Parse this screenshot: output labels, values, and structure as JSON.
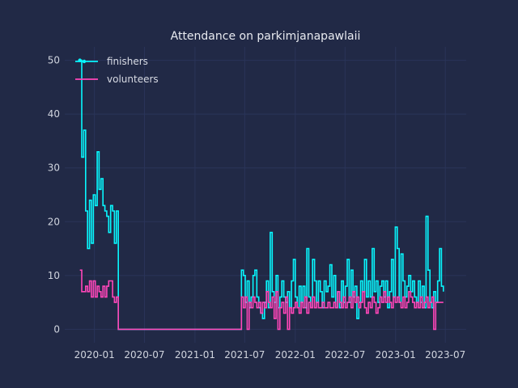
{
  "chart_data": {
    "type": "line",
    "title": "Attendance on parkimjanapawlaii",
    "xlabel": "",
    "ylabel": "",
    "xlim": [
      "2019-09-15",
      "2023-09-15"
    ],
    "ylim": [
      -2.5,
      52.5
    ],
    "x_ticks": [
      "2020-01",
      "2020-07",
      "2021-01",
      "2021-07",
      "2022-01",
      "2022-07",
      "2023-01",
      "2023-07"
    ],
    "y_ticks": [
      0,
      10,
      20,
      30,
      40,
      50
    ],
    "grid": true,
    "legend": "top-left",
    "step": true,
    "series": [
      {
        "name": "finishers",
        "color": "#08F7FE",
        "marker_first": true,
        "points": [
          [
            "2019-11-09",
            50
          ],
          [
            "2019-11-16",
            32
          ],
          [
            "2019-11-23",
            37
          ],
          [
            "2019-11-30",
            22
          ],
          [
            "2019-12-07",
            15
          ],
          [
            "2019-12-14",
            24
          ],
          [
            "2019-12-21",
            16
          ],
          [
            "2019-12-28",
            25
          ],
          [
            "2020-01-04",
            23
          ],
          [
            "2020-01-11",
            33
          ],
          [
            "2020-01-18",
            26
          ],
          [
            "2020-01-25",
            28
          ],
          [
            "2020-02-01",
            23
          ],
          [
            "2020-02-08",
            22
          ],
          [
            "2020-02-15",
            21
          ],
          [
            "2020-02-22",
            18
          ],
          [
            "2020-02-29",
            23
          ],
          [
            "2020-03-07",
            22
          ],
          [
            "2020-03-14",
            16
          ],
          [
            "2020-03-21",
            22
          ],
          [
            "2020-03-28",
            0
          ],
          [
            "2021-06-12",
            0
          ],
          [
            "2021-06-19",
            11
          ],
          [
            "2021-06-26",
            10
          ],
          [
            "2021-07-03",
            5
          ],
          [
            "2021-07-10",
            9
          ],
          [
            "2021-07-17",
            4
          ],
          [
            "2021-07-24",
            6
          ],
          [
            "2021-07-31",
            10
          ],
          [
            "2021-08-07",
            11
          ],
          [
            "2021-08-14",
            6
          ],
          [
            "2021-08-21",
            4
          ],
          [
            "2021-08-28",
            3
          ],
          [
            "2021-09-04",
            2
          ],
          [
            "2021-09-11",
            5
          ],
          [
            "2021-09-18",
            9
          ],
          [
            "2021-09-25",
            4
          ],
          [
            "2021-10-02",
            18
          ],
          [
            "2021-10-09",
            7
          ],
          [
            "2021-10-16",
            5
          ],
          [
            "2021-10-23",
            10
          ],
          [
            "2021-10-30",
            4
          ],
          [
            "2021-11-06",
            6
          ],
          [
            "2021-11-13",
            9
          ],
          [
            "2021-11-20",
            6
          ],
          [
            "2021-11-27",
            5
          ],
          [
            "2021-12-04",
            7
          ],
          [
            "2021-12-11",
            4
          ],
          [
            "2021-12-18",
            9
          ],
          [
            "2021-12-25",
            13
          ],
          [
            "2022-01-01",
            6
          ],
          [
            "2022-01-08",
            4
          ],
          [
            "2022-01-15",
            8
          ],
          [
            "2022-01-22",
            5
          ],
          [
            "2022-01-29",
            8
          ],
          [
            "2022-02-05",
            4
          ],
          [
            "2022-02-12",
            15
          ],
          [
            "2022-02-19",
            6
          ],
          [
            "2022-02-26",
            4
          ],
          [
            "2022-03-05",
            13
          ],
          [
            "2022-03-12",
            9
          ],
          [
            "2022-03-19",
            5
          ],
          [
            "2022-03-26",
            9
          ],
          [
            "2022-04-02",
            7
          ],
          [
            "2022-04-09",
            4
          ],
          [
            "2022-04-16",
            9
          ],
          [
            "2022-04-23",
            7
          ],
          [
            "2022-04-30",
            8
          ],
          [
            "2022-05-07",
            12
          ],
          [
            "2022-05-14",
            6
          ],
          [
            "2022-05-21",
            10
          ],
          [
            "2022-05-28",
            4
          ],
          [
            "2022-06-04",
            7
          ],
          [
            "2022-06-11",
            4
          ],
          [
            "2022-06-18",
            9
          ],
          [
            "2022-06-25",
            5
          ],
          [
            "2022-07-02",
            8
          ],
          [
            "2022-07-09",
            13
          ],
          [
            "2022-07-16",
            5
          ],
          [
            "2022-07-23",
            11
          ],
          [
            "2022-07-30",
            6
          ],
          [
            "2022-08-06",
            8
          ],
          [
            "2022-08-13",
            2
          ],
          [
            "2022-08-20",
            5
          ],
          [
            "2022-08-27",
            9
          ],
          [
            "2022-09-03",
            7
          ],
          [
            "2022-09-10",
            13
          ],
          [
            "2022-09-17",
            6
          ],
          [
            "2022-09-24",
            9
          ],
          [
            "2022-10-01",
            6
          ],
          [
            "2022-10-08",
            15
          ],
          [
            "2022-10-15",
            7
          ],
          [
            "2022-10-22",
            9
          ],
          [
            "2022-10-29",
            5
          ],
          [
            "2022-11-05",
            8
          ],
          [
            "2022-11-12",
            9
          ],
          [
            "2022-11-19",
            6
          ],
          [
            "2022-11-26",
            9
          ],
          [
            "2022-12-03",
            4
          ],
          [
            "2022-12-10",
            7
          ],
          [
            "2022-12-17",
            13
          ],
          [
            "2022-12-24",
            6
          ],
          [
            "2022-12-31",
            19
          ],
          [
            "2023-01-07",
            15
          ],
          [
            "2023-01-14",
            5
          ],
          [
            "2023-01-21",
            14
          ],
          [
            "2023-01-28",
            9
          ],
          [
            "2023-02-04",
            6
          ],
          [
            "2023-02-11",
            8
          ],
          [
            "2023-02-18",
            10
          ],
          [
            "2023-02-25",
            7
          ],
          [
            "2023-03-04",
            9
          ],
          [
            "2023-03-11",
            6
          ],
          [
            "2023-03-18",
            5
          ],
          [
            "2023-03-25",
            9
          ],
          [
            "2023-04-01",
            5
          ],
          [
            "2023-04-08",
            8
          ],
          [
            "2023-04-15",
            4
          ],
          [
            "2023-04-22",
            21
          ],
          [
            "2023-04-29",
            11
          ],
          [
            "2023-05-06",
            5
          ],
          [
            "2023-05-13",
            4
          ],
          [
            "2023-05-20",
            7
          ],
          [
            "2023-05-27",
            5
          ],
          [
            "2023-06-03",
            9
          ],
          [
            "2023-06-10",
            15
          ],
          [
            "2023-06-17",
            8
          ],
          [
            "2023-06-24",
            7
          ]
        ]
      },
      {
        "name": "volunteers",
        "color": "#FF46B9",
        "marker_first": false,
        "points": [
          [
            "2019-11-09",
            11
          ],
          [
            "2019-11-16",
            7
          ],
          [
            "2019-11-30",
            8
          ],
          [
            "2019-12-07",
            7
          ],
          [
            "2019-12-14",
            9
          ],
          [
            "2019-12-21",
            6
          ],
          [
            "2019-12-28",
            9
          ],
          [
            "2020-01-04",
            6
          ],
          [
            "2020-01-11",
            8
          ],
          [
            "2020-01-18",
            7
          ],
          [
            "2020-01-25",
            6
          ],
          [
            "2020-02-01",
            8
          ],
          [
            "2020-02-08",
            6
          ],
          [
            "2020-02-15",
            8
          ],
          [
            "2020-02-22",
            9
          ],
          [
            "2020-03-07",
            6
          ],
          [
            "2020-03-14",
            5
          ],
          [
            "2020-03-21",
            6
          ],
          [
            "2020-03-28",
            0
          ],
          [
            "2021-06-12",
            0
          ],
          [
            "2021-06-19",
            6
          ],
          [
            "2021-06-26",
            4
          ],
          [
            "2021-07-03",
            6
          ],
          [
            "2021-07-10",
            0
          ],
          [
            "2021-07-17",
            5
          ],
          [
            "2021-07-24",
            4
          ],
          [
            "2021-07-31",
            6
          ],
          [
            "2021-08-07",
            5
          ],
          [
            "2021-08-14",
            4
          ],
          [
            "2021-08-21",
            5
          ],
          [
            "2021-08-28",
            3
          ],
          [
            "2021-09-04",
            5
          ],
          [
            "2021-09-11",
            4
          ],
          [
            "2021-09-18",
            7
          ],
          [
            "2021-09-25",
            5
          ],
          [
            "2021-10-02",
            4
          ],
          [
            "2021-10-09",
            6
          ],
          [
            "2021-10-16",
            2
          ],
          [
            "2021-10-23",
            7
          ],
          [
            "2021-10-30",
            0
          ],
          [
            "2021-11-06",
            4
          ],
          [
            "2021-11-13",
            5
          ],
          [
            "2021-11-20",
            3
          ],
          [
            "2021-11-27",
            6
          ],
          [
            "2021-12-04",
            0
          ],
          [
            "2021-12-11",
            4
          ],
          [
            "2021-12-18",
            3
          ],
          [
            "2021-12-25",
            4
          ],
          [
            "2022-01-01",
            5
          ],
          [
            "2022-01-08",
            4
          ],
          [
            "2022-01-15",
            3
          ],
          [
            "2022-01-22",
            5
          ],
          [
            "2022-01-29",
            4
          ],
          [
            "2022-02-05",
            6
          ],
          [
            "2022-02-12",
            3
          ],
          [
            "2022-02-19",
            5
          ],
          [
            "2022-02-26",
            4
          ],
          [
            "2022-03-05",
            6
          ],
          [
            "2022-03-12",
            4
          ],
          [
            "2022-03-19",
            5
          ],
          [
            "2022-03-26",
            4
          ],
          [
            "2022-04-02",
            4
          ],
          [
            "2022-04-09",
            5
          ],
          [
            "2022-04-16",
            4
          ],
          [
            "2022-04-23",
            4
          ],
          [
            "2022-04-30",
            5
          ],
          [
            "2022-05-07",
            4
          ],
          [
            "2022-05-14",
            4
          ],
          [
            "2022-05-21",
            5
          ],
          [
            "2022-05-28",
            4
          ],
          [
            "2022-06-04",
            7
          ],
          [
            "2022-06-11",
            5
          ],
          [
            "2022-06-18",
            4
          ],
          [
            "2022-06-25",
            6
          ],
          [
            "2022-07-02",
            4
          ],
          [
            "2022-07-09",
            5
          ],
          [
            "2022-07-16",
            6
          ],
          [
            "2022-07-23",
            4
          ],
          [
            "2022-07-30",
            7
          ],
          [
            "2022-08-06",
            5
          ],
          [
            "2022-08-13",
            6
          ],
          [
            "2022-08-20",
            4
          ],
          [
            "2022-08-27",
            5
          ],
          [
            "2022-09-03",
            7
          ],
          [
            "2022-09-10",
            4
          ],
          [
            "2022-09-17",
            3
          ],
          [
            "2022-09-24",
            5
          ],
          [
            "2022-10-01",
            4
          ],
          [
            "2022-10-08",
            6
          ],
          [
            "2022-10-15",
            5
          ],
          [
            "2022-10-22",
            3
          ],
          [
            "2022-10-29",
            4
          ],
          [
            "2022-11-05",
            6
          ],
          [
            "2022-11-12",
            5
          ],
          [
            "2022-11-19",
            7
          ],
          [
            "2022-11-26",
            5
          ],
          [
            "2022-12-03",
            6
          ],
          [
            "2022-12-10",
            5
          ],
          [
            "2022-12-17",
            4
          ],
          [
            "2022-12-24",
            6
          ],
          [
            "2022-12-31",
            5
          ],
          [
            "2023-01-07",
            6
          ],
          [
            "2023-01-14",
            5
          ],
          [
            "2023-01-21",
            4
          ],
          [
            "2023-01-28",
            6
          ],
          [
            "2023-02-04",
            4
          ],
          [
            "2023-02-11",
            5
          ],
          [
            "2023-02-18",
            7
          ],
          [
            "2023-02-25",
            6
          ],
          [
            "2023-03-04",
            5
          ],
          [
            "2023-03-11",
            4
          ],
          [
            "2023-03-18",
            5
          ],
          [
            "2023-03-25",
            4
          ],
          [
            "2023-04-01",
            6
          ],
          [
            "2023-04-08",
            4
          ],
          [
            "2023-04-15",
            5
          ],
          [
            "2023-04-22",
            6
          ],
          [
            "2023-04-29",
            4
          ],
          [
            "2023-05-06",
            5
          ],
          [
            "2023-05-13",
            6
          ],
          [
            "2023-05-20",
            0
          ],
          [
            "2023-05-27",
            5
          ],
          [
            "2023-06-03",
            5
          ],
          [
            "2023-06-10",
            5
          ],
          [
            "2023-06-17",
            5
          ],
          [
            "2023-06-24",
            5
          ]
        ]
      }
    ]
  },
  "colors": {
    "background": "#212946",
    "grid": "#2A3459",
    "text": "#d0d4de"
  }
}
